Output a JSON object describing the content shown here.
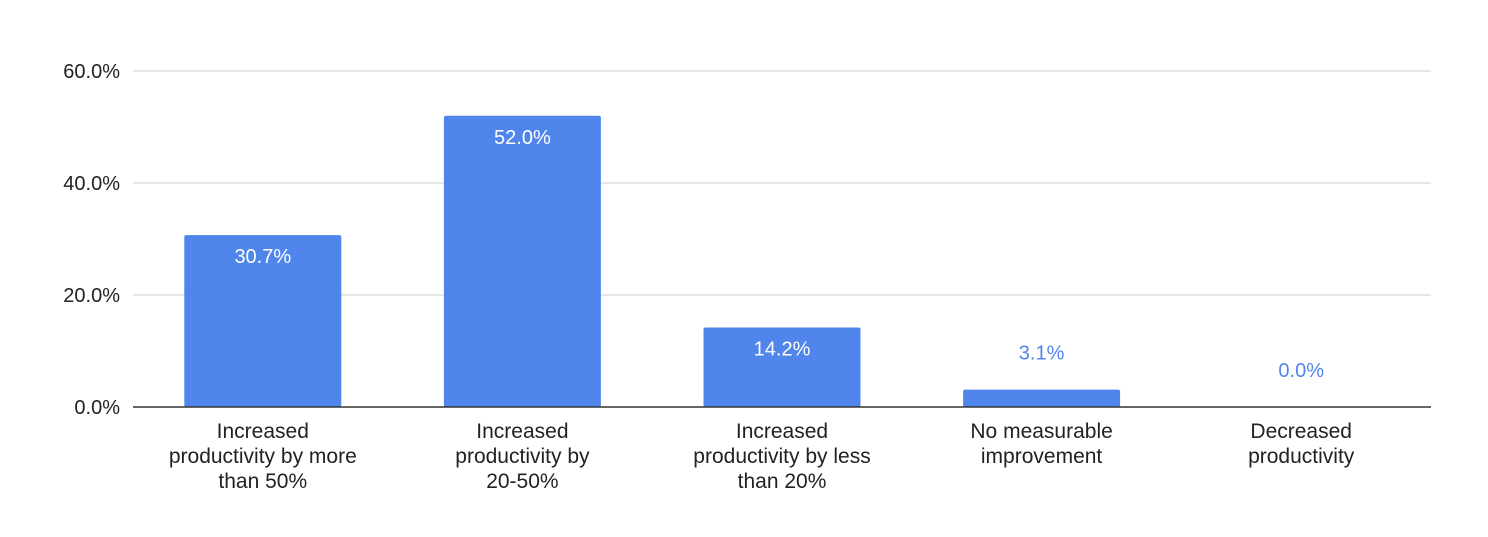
{
  "chart_data": {
    "type": "bar",
    "title": "",
    "xlabel": "",
    "ylabel": "",
    "categories": [
      [
        "Increased",
        "productivity by more",
        "than 50%"
      ],
      [
        "Increased",
        "productivity by",
        "20-50%"
      ],
      [
        "Increased",
        "productivity by less",
        "than 20%"
      ],
      [
        "No measurable",
        "improvement"
      ],
      [
        "Decreased",
        "productivity"
      ]
    ],
    "series": [
      {
        "values": [
          30.7,
          52.0,
          14.2,
          3.1,
          0.0
        ],
        "data_labels": [
          "30.7%",
          "52.0%",
          "14.2%",
          "3.1%",
          "0.0%"
        ]
      }
    ],
    "ylim": [
      0,
      60
    ],
    "y_ticks": [
      0,
      20,
      40,
      60
    ],
    "y_tick_labels": [
      "0.0%",
      "20.0%",
      "40.0%",
      "60.0%"
    ],
    "grid": true,
    "legend": "none",
    "colors": {
      "bar": "#5086ec",
      "grid": "#cccccc",
      "axis": "#333333",
      "text": "#222222",
      "label_inside": "#ffffff",
      "label_outside": "#5086ec"
    }
  }
}
